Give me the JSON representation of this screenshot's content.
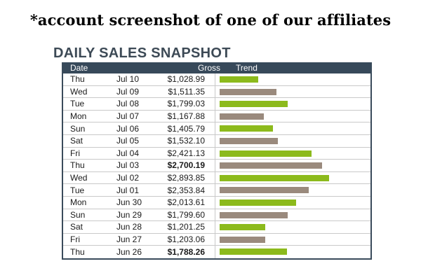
{
  "caption": "*account screenshot of one of our affiliates",
  "widget": {
    "title": "DAILY SALES SNAPSHOT",
    "columns": {
      "date": "Date",
      "gross": "Gross",
      "trend": "Trend"
    },
    "colors": {
      "header_bg": "#37495a",
      "up": "#8cba1c",
      "down": "#9a8a7d"
    },
    "rows": [
      {
        "day": "Thu",
        "date": "Jul 10",
        "gross": "$1,028.99",
        "value": 1028.99,
        "trend": "up",
        "bold": false
      },
      {
        "day": "Wed",
        "date": "Jul 09",
        "gross": "$1,511.35",
        "value": 1511.35,
        "trend": "down",
        "bold": false
      },
      {
        "day": "Tue",
        "date": "Jul 08",
        "gross": "$1,799.03",
        "value": 1799.03,
        "trend": "up",
        "bold": false
      },
      {
        "day": "Mon",
        "date": "Jul 07",
        "gross": "$1,167.88",
        "value": 1167.88,
        "trend": "down",
        "bold": false
      },
      {
        "day": "Sun",
        "date": "Jul 06",
        "gross": "$1,405.79",
        "value": 1405.79,
        "trend": "up",
        "bold": false
      },
      {
        "day": "Sat",
        "date": "Jul 05",
        "gross": "$1,532.10",
        "value": 1532.1,
        "trend": "down",
        "bold": false
      },
      {
        "day": "Fri",
        "date": "Jul 04",
        "gross": "$2,421.13",
        "value": 2421.13,
        "trend": "up",
        "bold": false
      },
      {
        "day": "Thu",
        "date": "Jul 03",
        "gross": "$2,700.19",
        "value": 2700.19,
        "trend": "down",
        "bold": true
      },
      {
        "day": "Wed",
        "date": "Jul 02",
        "gross": "$2,893.85",
        "value": 2893.85,
        "trend": "up",
        "bold": false
      },
      {
        "day": "Tue",
        "date": "Jul 01",
        "gross": "$2,353.84",
        "value": 2353.84,
        "trend": "down",
        "bold": false
      },
      {
        "day": "Mon",
        "date": "Jun 30",
        "gross": "$2,013.61",
        "value": 2013.61,
        "trend": "up",
        "bold": false
      },
      {
        "day": "Sun",
        "date": "Jun 29",
        "gross": "$1,799.60",
        "value": 1799.6,
        "trend": "down",
        "bold": false
      },
      {
        "day": "Sat",
        "date": "Jun 28",
        "gross": "$1,201.25",
        "value": 1201.25,
        "trend": "up",
        "bold": false
      },
      {
        "day": "Fri",
        "date": "Jun 27",
        "gross": "$1,203.06",
        "value": 1203.06,
        "trend": "down",
        "bold": false
      },
      {
        "day": "Thu",
        "date": "Jun 26",
        "gross": "$1,788.26",
        "value": 1788.26,
        "trend": "up",
        "bold": true
      }
    ]
  }
}
